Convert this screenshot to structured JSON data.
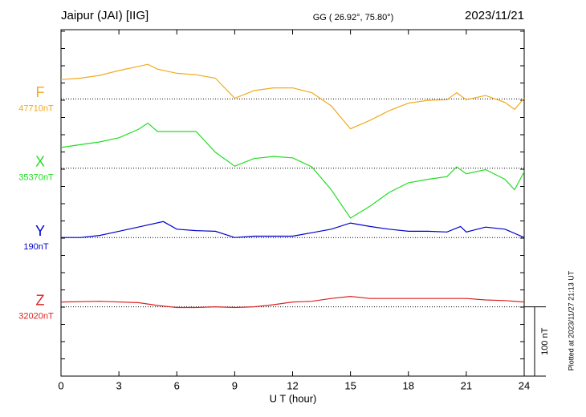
{
  "chart_data": {
    "type": "line",
    "title": "Jaipur (JAI)  [IIG]",
    "subtitle": "GG ( 26.92°,  75.80°)",
    "date": "2023/11/21",
    "x_label": "U T (hour)",
    "footnote": "Plotted at 2023/11/27 21:13 UT",
    "xlim": [
      0,
      24
    ],
    "xticks": [
      0,
      3,
      6,
      9,
      12,
      15,
      18,
      21,
      24
    ],
    "ylim": [
      0,
      500
    ],
    "scale": {
      "value": 100,
      "label": "100 nT"
    },
    "series": [
      {
        "name": "F",
        "color": "#f2aa1c",
        "baseline": 47710,
        "baseline_label": "47710nT",
        "x": [
          0,
          1,
          2,
          3,
          4,
          4.5,
          5,
          6,
          7,
          8,
          9,
          10,
          11,
          12,
          13,
          14,
          15,
          16,
          17,
          18,
          19,
          20,
          20.5,
          21,
          22,
          23,
          23.5,
          24
        ],
        "values": [
          47738,
          47740,
          47744,
          47751,
          47757,
          47760,
          47753,
          47747,
          47745,
          47740,
          47711,
          47722,
          47726,
          47726,
          47719,
          47700,
          47667,
          47679,
          47693,
          47704,
          47708,
          47709,
          47719,
          47709,
          47715,
          47705,
          47695,
          47711
        ]
      },
      {
        "name": "X",
        "color": "#22dd22",
        "baseline": 35370,
        "baseline_label": "35370nT",
        "x": [
          0,
          1,
          2,
          3,
          4,
          4.5,
          5,
          6,
          7,
          8,
          9,
          10,
          11,
          12,
          13,
          14,
          15,
          16,
          17,
          18,
          19,
          20,
          20.5,
          21,
          22,
          23,
          23.5,
          24
        ],
        "values": [
          35400,
          35404,
          35408,
          35414,
          35426,
          35435,
          35423,
          35423,
          35423,
          35393,
          35373,
          35384,
          35387,
          35385,
          35372,
          35339,
          35298,
          35315,
          35335,
          35349,
          35354,
          35358,
          35372,
          35362,
          35368,
          35354,
          35339,
          35365
        ]
      },
      {
        "name": "Y",
        "color": "#0000cc",
        "baseline": 190,
        "baseline_label": "190nT",
        "x": [
          0,
          1,
          2,
          3,
          4,
          5.3,
          6,
          7,
          8,
          9,
          10,
          11,
          12,
          13,
          14,
          15,
          16,
          17,
          18,
          19,
          20,
          20.7,
          21,
          22,
          23,
          24
        ],
        "values": [
          190,
          190,
          193,
          199,
          205,
          213,
          202,
          200,
          199,
          190,
          192,
          192,
          192,
          197,
          202,
          211,
          206,
          202,
          199,
          199,
          198,
          206,
          198,
          205,
          202,
          190
        ]
      },
      {
        "name": "Z",
        "color": "#dd2222",
        "baseline": 32020,
        "baseline_label": "32020nT",
        "x": [
          0,
          2,
          4,
          5,
          6,
          7,
          8,
          9,
          10,
          11,
          12,
          13,
          14,
          15,
          16,
          17,
          18,
          19,
          20,
          21,
          22,
          23,
          24
        ],
        "values": [
          32027,
          32028,
          32026,
          32022,
          32019,
          32019,
          32020,
          32019,
          32020,
          32023,
          32027,
          32028,
          32032,
          32035,
          32032,
          32032,
          32032,
          32032,
          32032,
          32032,
          32030,
          32029,
          32027
        ]
      }
    ]
  }
}
